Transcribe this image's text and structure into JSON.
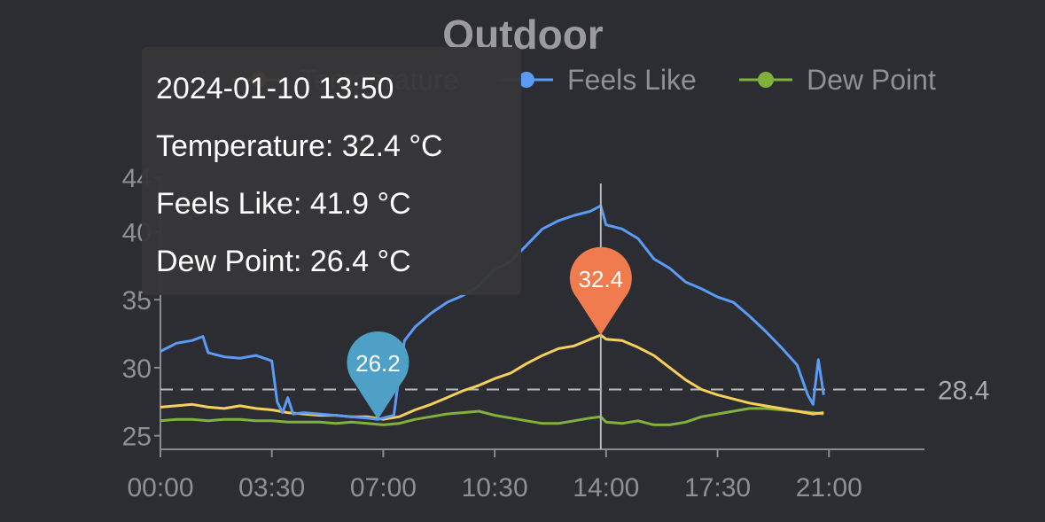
{
  "chart_data": {
    "type": "line",
    "title": "Outdoor",
    "x_ticks": [
      "00:00",
      "03:30",
      "07:00",
      "10:30",
      "14:00",
      "17:30",
      "21:00"
    ],
    "y_ticks": [
      25,
      30,
      35,
      40,
      44
    ],
    "ylim": [
      24,
      44
    ],
    "xlim": [
      "00:00",
      "24:00"
    ],
    "legend_position": "top",
    "grid": false,
    "series": [
      {
        "name": "Temperature",
        "color": "#f7cf5a",
        "x": [
          "00:00",
          "00:30",
          "01:00",
          "01:30",
          "02:00",
          "02:30",
          "03:00",
          "03:30",
          "04:00",
          "04:30",
          "05:00",
          "05:30",
          "06:00",
          "06:30",
          "07:00",
          "07:30",
          "08:00",
          "08:30",
          "09:00",
          "09:30",
          "10:00",
          "10:30",
          "11:00",
          "11:30",
          "12:00",
          "12:30",
          "13:00",
          "13:30",
          "13:50",
          "14:00",
          "14:30",
          "15:00",
          "15:30",
          "16:00",
          "16:30",
          "17:00",
          "17:30",
          "18:00",
          "18:30",
          "19:00",
          "19:30",
          "20:00",
          "20:30",
          "20:50"
        ],
        "values": [
          27.1,
          27.2,
          27.3,
          27.1,
          27.0,
          27.2,
          27.0,
          26.9,
          26.7,
          26.6,
          26.5,
          26.5,
          26.4,
          26.4,
          26.2,
          26.4,
          26.9,
          27.3,
          27.8,
          28.3,
          28.7,
          29.2,
          29.6,
          30.3,
          30.9,
          31.4,
          31.6,
          32.1,
          32.4,
          32.1,
          32.0,
          31.5,
          30.9,
          30.0,
          29.1,
          28.4,
          28.0,
          27.7,
          27.4,
          27.2,
          27.0,
          26.8,
          26.6,
          26.7
        ]
      },
      {
        "name": "Feels Like",
        "color": "#5b9bf5",
        "x": [
          "00:00",
          "00:30",
          "01:00",
          "01:20",
          "01:30",
          "02:00",
          "02:30",
          "03:00",
          "03:30",
          "03:40",
          "03:50",
          "04:00",
          "04:10",
          "04:30",
          "05:00",
          "05:30",
          "06:00",
          "06:30",
          "06:50",
          "07:20",
          "07:30",
          "07:40",
          "08:00",
          "08:30",
          "09:00",
          "09:30",
          "10:00",
          "10:30",
          "11:00",
          "11:30",
          "12:00",
          "12:30",
          "13:00",
          "13:30",
          "13:50",
          "14:00",
          "14:30",
          "15:00",
          "15:30",
          "16:00",
          "16:30",
          "17:00",
          "17:30",
          "18:00",
          "18:30",
          "19:00",
          "19:30",
          "20:00",
          "20:20",
          "20:30",
          "20:40",
          "20:50"
        ],
        "values": [
          31.2,
          31.8,
          32.0,
          32.3,
          31.1,
          30.8,
          30.7,
          30.9,
          30.5,
          27.5,
          26.7,
          27.8,
          26.6,
          26.7,
          26.6,
          26.5,
          26.4,
          26.3,
          26.2,
          26.5,
          29.5,
          32.0,
          33.0,
          34.0,
          34.8,
          35.3,
          36.0,
          37.2,
          37.8,
          39.0,
          40.2,
          40.8,
          41.2,
          41.5,
          41.9,
          40.5,
          40.2,
          39.5,
          38.0,
          37.3,
          36.3,
          35.8,
          35.2,
          34.8,
          33.8,
          32.7,
          31.5,
          30.2,
          28.0,
          27.3,
          30.6,
          28.0
        ]
      },
      {
        "name": "Dew Point",
        "color": "#80b23b",
        "x": [
          "00:00",
          "00:30",
          "01:00",
          "01:30",
          "02:00",
          "02:30",
          "03:00",
          "03:30",
          "04:00",
          "04:30",
          "05:00",
          "05:30",
          "06:00",
          "06:30",
          "07:00",
          "07:30",
          "08:00",
          "08:30",
          "09:00",
          "09:30",
          "10:00",
          "10:30",
          "11:00",
          "11:30",
          "12:00",
          "12:30",
          "13:00",
          "13:30",
          "13:50",
          "14:00",
          "14:30",
          "15:00",
          "15:30",
          "16:00",
          "16:30",
          "17:00",
          "17:30",
          "18:00",
          "18:30",
          "19:00",
          "19:30",
          "20:00",
          "20:30",
          "20:50"
        ],
        "values": [
          26.1,
          26.2,
          26.2,
          26.1,
          26.2,
          26.2,
          26.1,
          26.1,
          26.0,
          26.0,
          26.0,
          25.9,
          26.0,
          25.9,
          25.8,
          25.9,
          26.2,
          26.4,
          26.6,
          26.7,
          26.8,
          26.5,
          26.3,
          26.1,
          25.9,
          25.9,
          26.1,
          26.3,
          26.4,
          26.0,
          25.9,
          26.1,
          25.8,
          25.8,
          26.0,
          26.4,
          26.6,
          26.8,
          27.0,
          27.0,
          26.9,
          26.8,
          26.7,
          26.6
        ]
      }
    ],
    "reference_line": {
      "value": 28.4,
      "label": "28.4"
    },
    "markers": [
      {
        "x": "06:50",
        "y": 26.2,
        "label": "26.2",
        "color": "#4fa0c7"
      },
      {
        "x": "13:50",
        "y": 32.4,
        "label": "32.4",
        "color": "#ef7b4e"
      }
    ],
    "cursor_x": "13:50"
  },
  "tooltip": {
    "time": "2024-01-10 13:50",
    "temperature": "Temperature: 32.4 °C",
    "feels_like": "Feels Like: 41.9 °C",
    "dew_point": "Dew Point: 26.4 °C"
  }
}
